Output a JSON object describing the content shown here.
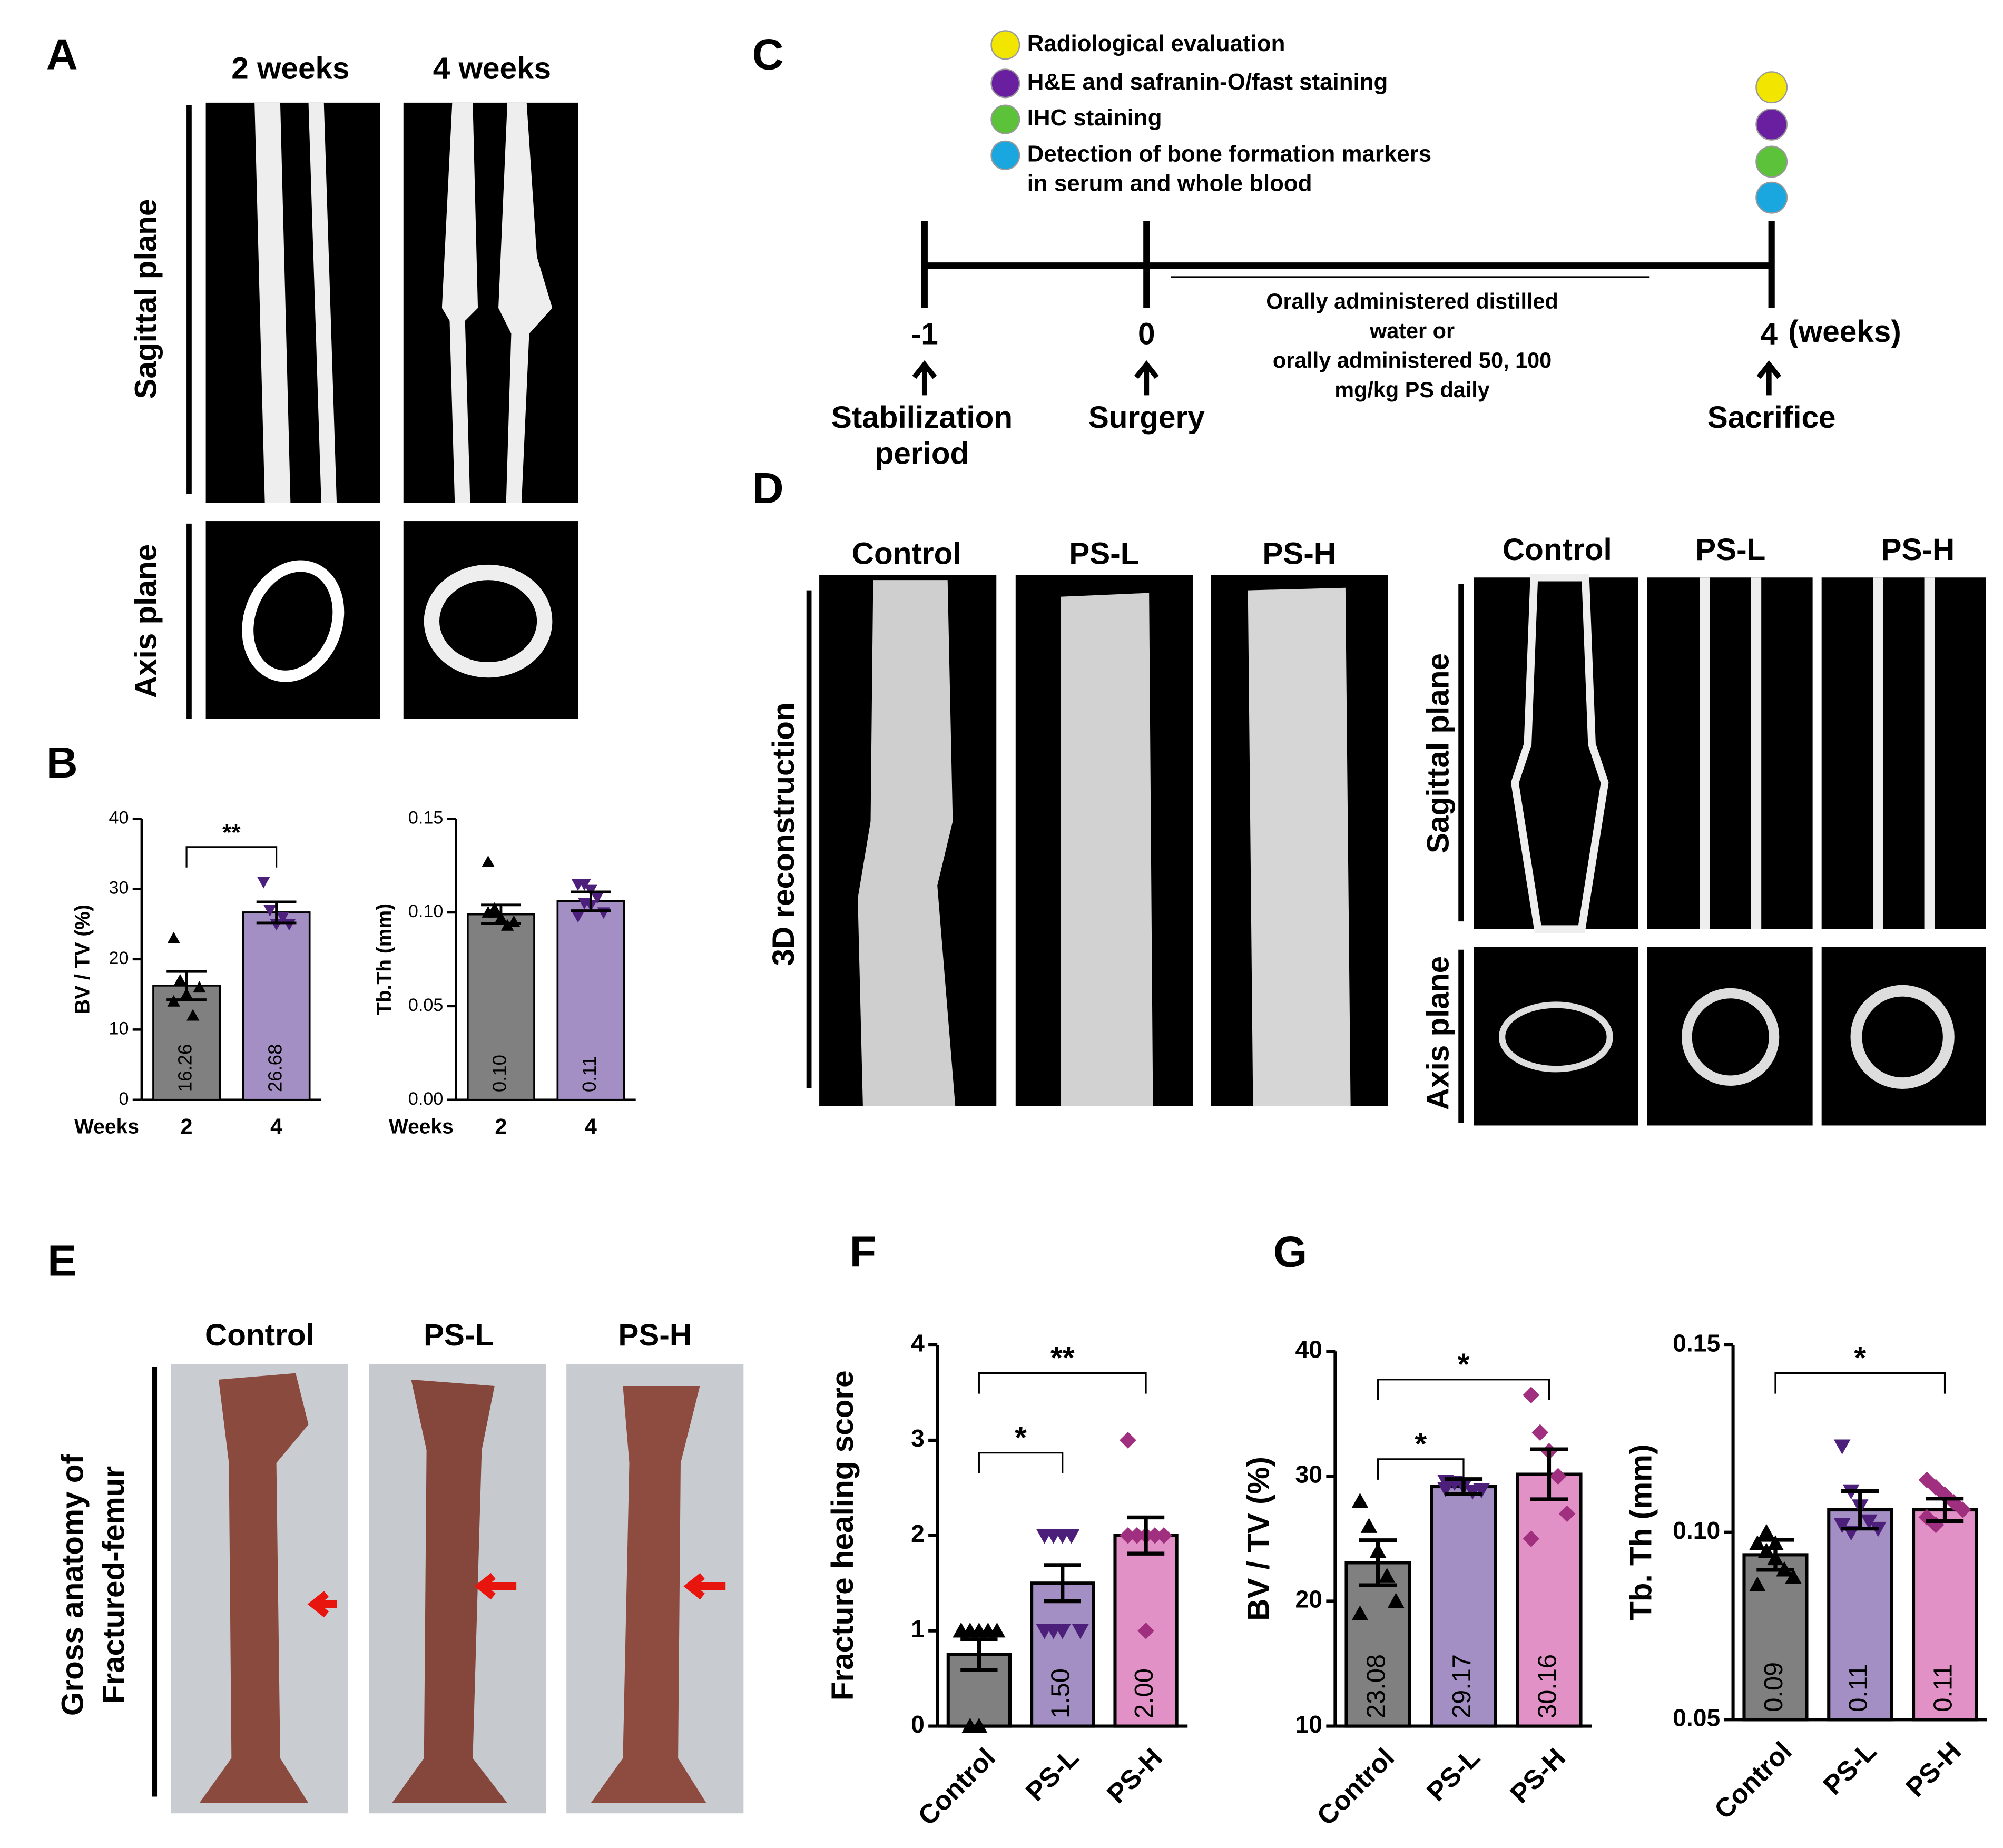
{
  "panel_labels": [
    "A",
    "B",
    "C",
    "D",
    "E",
    "F",
    "G"
  ],
  "panel_a": {
    "columns": [
      "2 weeks",
      "4 weeks"
    ],
    "rows": [
      "Sagittal plane",
      "Axis plane"
    ]
  },
  "panel_c": {
    "legend": [
      "Radiological evaluation",
      "H&E and safranin-O/fast staining",
      "IHC staining",
      "Detection of bone formation markers",
      "in serum and whole blood"
    ],
    "timepoints": [
      "-1",
      "0",
      "4"
    ],
    "unit": "(weeks)",
    "events": [
      "Stabilization",
      "period",
      "Surgery",
      "Sacrifice"
    ],
    "treatment": [
      "Orally administered distilled",
      "water or",
      "orally administered 50, 100",
      "mg/kg PS daily"
    ]
  },
  "panel_d": {
    "row_label": "3D reconstruction",
    "groups": [
      "Control",
      "PS-L",
      "PS-H"
    ],
    "rows": [
      "Sagittal plane",
      "Axis plane"
    ]
  },
  "panel_e": {
    "row_label": [
      "Gross anatomy of",
      "Fractured-femur"
    ],
    "groups": [
      "Control",
      "PS-L",
      "PS-H"
    ]
  },
  "chart_data": [
    {
      "type": "bar",
      "ylabel": "BV / TV (%)",
      "xlabel": "Weeks",
      "categories": [
        "2",
        "4"
      ],
      "values": [
        16.26,
        26.68
      ],
      "errors": [
        2.0,
        1.5
      ],
      "points": [
        [
          23,
          17,
          15,
          12,
          16,
          14
        ],
        [
          31,
          27,
          25,
          26,
          25
        ]
      ],
      "colors": [
        "#808080",
        "#a48fc4"
      ],
      "point_colors": [
        "#000000",
        "#4b1f7a"
      ],
      "ylim": [
        0,
        40
      ],
      "yticks": [
        0,
        10,
        20,
        30,
        40
      ],
      "significance": [
        {
          "groups": [
            "2",
            "4"
          ],
          "label": "**"
        }
      ]
    },
    {
      "type": "bar",
      "ylabel": "Tb.Th (mm)",
      "xlabel": "Weeks",
      "categories": [
        "2",
        "4"
      ],
      "values": [
        0.099,
        0.106
      ],
      "value_labels": [
        "0.10",
        "0.11"
      ],
      "errors": [
        0.005,
        0.005
      ],
      "points": [
        [
          0.127,
          0.1,
          0.097,
          0.093,
          0.095,
          0.1,
          0.102
        ],
        [
          0.115,
          0.115,
          0.112,
          0.108,
          0.1,
          0.098,
          0.105,
          0.104
        ]
      ],
      "colors": [
        "#808080",
        "#a48fc4"
      ],
      "point_colors": [
        "#000000",
        "#4b1f7a"
      ],
      "ylim": [
        0,
        0.15
      ],
      "yticks": [
        {
          "value": 0,
          "label": "0.00"
        },
        0.05,
        {
          "value": 0.1,
          "label": "0.10"
        },
        0.15
      ],
      "significance": []
    },
    {
      "type": "bar",
      "ylabel": "Fracture healing score",
      "categories": [
        "Control",
        "PS-L",
        "PS-H"
      ],
      "values": [
        0.75,
        1.5,
        2.0
      ],
      "value_labels": [
        null,
        "1.50",
        "2.00"
      ],
      "errors": [
        0.16,
        0.19,
        0.19
      ],
      "points": [
        [
          1,
          1,
          1,
          1,
          1,
          1,
          0,
          0
        ],
        [
          2,
          2,
          2,
          2,
          1,
          1,
          1,
          1
        ],
        [
          3,
          2,
          2,
          2,
          2,
          2,
          2,
          1
        ]
      ],
      "colors": [
        "#808080",
        "#a48fc4",
        "#e291c6"
      ],
      "point_colors": [
        "#000000",
        "#4b1f7a",
        "#a0307f"
      ],
      "ylim": [
        0,
        4
      ],
      "yticks": [
        0,
        1,
        2,
        3,
        4
      ],
      "significance": [
        {
          "groups": [
            "Control",
            "PS-L"
          ],
          "label": "*"
        },
        {
          "groups": [
            "Control",
            "PS-H"
          ],
          "label": "**"
        }
      ]
    },
    {
      "type": "bar",
      "ylabel": "BV /  TV (%)",
      "categories": [
        "Control",
        "PS-L",
        "PS-H"
      ],
      "values": [
        23.08,
        29.17,
        30.16
      ],
      "errors": [
        1.8,
        0.6,
        2.0
      ],
      "points": [
        [
          28,
          26,
          24,
          22,
          20,
          19
        ],
        [
          29.6,
          29.5,
          29.2,
          28.8,
          28.9,
          29.0
        ],
        [
          36.5,
          33.5,
          32,
          30,
          27,
          25
        ]
      ],
      "colors": [
        "#808080",
        "#a48fc4",
        "#e291c6"
      ],
      "point_colors": [
        "#000000",
        "#4b1f7a",
        "#a0307f"
      ],
      "ylim": [
        10,
        40
      ],
      "yticks": [
        10,
        20,
        30,
        40
      ],
      "significance": [
        {
          "groups": [
            "Control",
            "PS-L"
          ],
          "label": "*"
        },
        {
          "groups": [
            "Control",
            "PS-H"
          ],
          "label": "*"
        }
      ]
    },
    {
      "type": "bar",
      "ylabel": "Tb. Th (mm)",
      "categories": [
        "Control",
        "PS-L",
        "PS-H"
      ],
      "values": [
        0.094,
        0.106,
        0.106
      ],
      "value_labels": [
        "0.09",
        "0.11",
        "0.11"
      ],
      "errors": [
        0.004,
        0.005,
        0.003
      ],
      "points": [
        [
          0.097,
          0.095,
          0.093,
          0.09,
          0.088,
          0.086,
          0.1,
          0.097
        ],
        [
          0.123,
          0.111,
          0.107,
          0.103,
          0.101,
          0.102,
          0.1
        ],
        [
          0.114,
          0.112,
          0.11,
          0.108,
          0.106,
          0.104,
          0.102,
          0.11
        ]
      ],
      "colors": [
        "#808080",
        "#a48fc4",
        "#e291c6"
      ],
      "point_colors": [
        "#000000",
        "#4b1f7a",
        "#a0307f"
      ],
      "ylim": [
        0.05,
        0.15
      ],
      "yticks": [
        0.05,
        {
          "value": 0.1,
          "label": "0.10"
        },
        0.15
      ],
      "significance": [
        {
          "groups": [
            "Control",
            "PS-H"
          ],
          "label": "*"
        }
      ]
    }
  ]
}
